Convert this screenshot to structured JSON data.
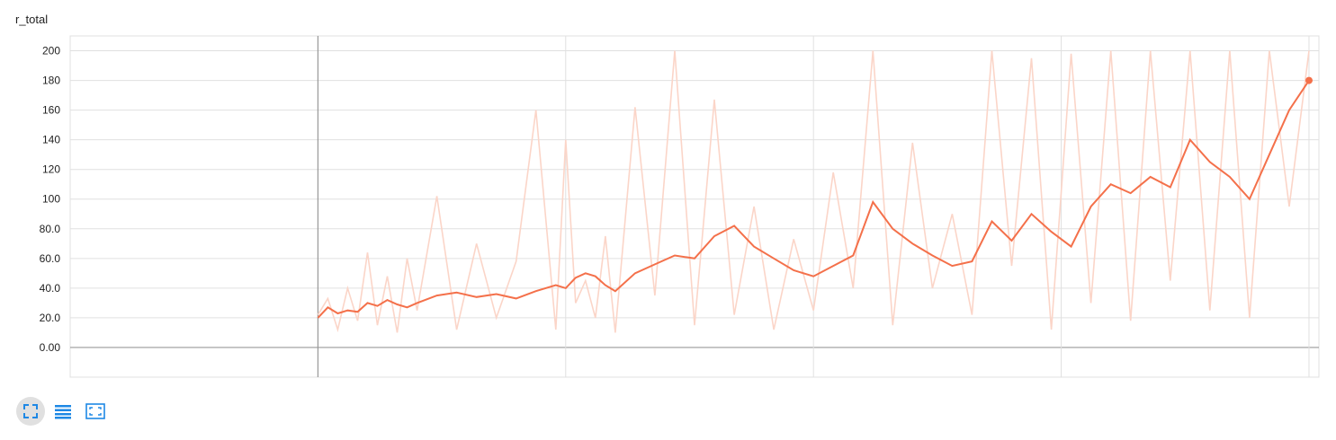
{
  "card": {
    "title": "r_total"
  },
  "colors": {
    "smoothed": "#f4704a",
    "raw": "#fbd5c8",
    "grid": "#e0e0e0",
    "axis": "#999999"
  },
  "controls": [
    {
      "name": "expand-chart-icon",
      "icon": "fullscreen"
    },
    {
      "name": "toggle-log-scale-icon",
      "icon": "list-lines"
    },
    {
      "name": "fit-domain-icon",
      "icon": "fit-to-data"
    }
  ],
  "chart_data": {
    "type": "line",
    "title": "r_total",
    "xlabel": "",
    "ylabel": "",
    "ylim": [
      -20,
      210
    ],
    "xlim": [
      -0.25,
      1.01
    ],
    "ytick_labels": [
      "0.00",
      "20.0",
      "40.0",
      "60.0",
      "80.0",
      "100",
      "120",
      "140",
      "160",
      "180",
      "200"
    ],
    "ytick_values": [
      0,
      20,
      40,
      60,
      80,
      100,
      120,
      140,
      160,
      180,
      200
    ],
    "x_vertical_lines": [
      0,
      0.25,
      0.5,
      0.75,
      1.0
    ],
    "grid": true,
    "series": [
      {
        "role": "smoothed",
        "x": [
          0,
          0.01,
          0.02,
          0.03,
          0.04,
          0.05,
          0.06,
          0.07,
          0.08,
          0.09,
          0.1,
          0.12,
          0.14,
          0.16,
          0.18,
          0.2,
          0.22,
          0.24,
          0.25,
          0.26,
          0.27,
          0.28,
          0.29,
          0.3,
          0.32,
          0.34,
          0.36,
          0.38,
          0.4,
          0.42,
          0.44,
          0.46,
          0.48,
          0.5,
          0.52,
          0.54,
          0.56,
          0.58,
          0.6,
          0.62,
          0.64,
          0.66,
          0.68,
          0.7,
          0.72,
          0.74,
          0.76,
          0.78,
          0.8,
          0.82,
          0.84,
          0.86,
          0.88,
          0.9,
          0.92,
          0.94,
          0.96,
          0.98,
          1.0
        ],
        "values": [
          20,
          27,
          23,
          25,
          24,
          30,
          28,
          32,
          29,
          27,
          30,
          35,
          37,
          34,
          36,
          33,
          38,
          42,
          40,
          47,
          50,
          48,
          42,
          38,
          50,
          56,
          62,
          60,
          75,
          82,
          68,
          60,
          52,
          48,
          55,
          62,
          98,
          80,
          70,
          62,
          55,
          58,
          85,
          72,
          90,
          78,
          68,
          95,
          110,
          104,
          115,
          108,
          140,
          125,
          115,
          100,
          130,
          160,
          180
        ]
      },
      {
        "role": "raw",
        "x": [
          0,
          0.01,
          0.02,
          0.03,
          0.04,
          0.05,
          0.06,
          0.07,
          0.08,
          0.09,
          0.1,
          0.12,
          0.14,
          0.16,
          0.18,
          0.2,
          0.22,
          0.24,
          0.25,
          0.26,
          0.27,
          0.28,
          0.29,
          0.3,
          0.32,
          0.34,
          0.36,
          0.38,
          0.4,
          0.42,
          0.44,
          0.46,
          0.48,
          0.5,
          0.52,
          0.54,
          0.56,
          0.58,
          0.6,
          0.62,
          0.64,
          0.66,
          0.68,
          0.7,
          0.72,
          0.74,
          0.76,
          0.78,
          0.8,
          0.82,
          0.84,
          0.86,
          0.88,
          0.9,
          0.92,
          0.94,
          0.96,
          0.98,
          1.0
        ],
        "values": [
          22,
          33,
          12,
          40,
          18,
          64,
          15,
          48,
          10,
          60,
          25,
          102,
          12,
          70,
          20,
          58,
          160,
          12,
          140,
          30,
          45,
          20,
          75,
          10,
          162,
          35,
          200,
          15,
          167,
          22,
          95,
          12,
          73,
          25,
          118,
          40,
          200,
          15,
          138,
          40,
          90,
          22,
          200,
          55,
          195,
          12,
          198,
          30,
          200,
          18,
          200,
          45,
          200,
          25,
          200,
          20,
          200,
          95,
          200
        ]
      }
    ]
  }
}
